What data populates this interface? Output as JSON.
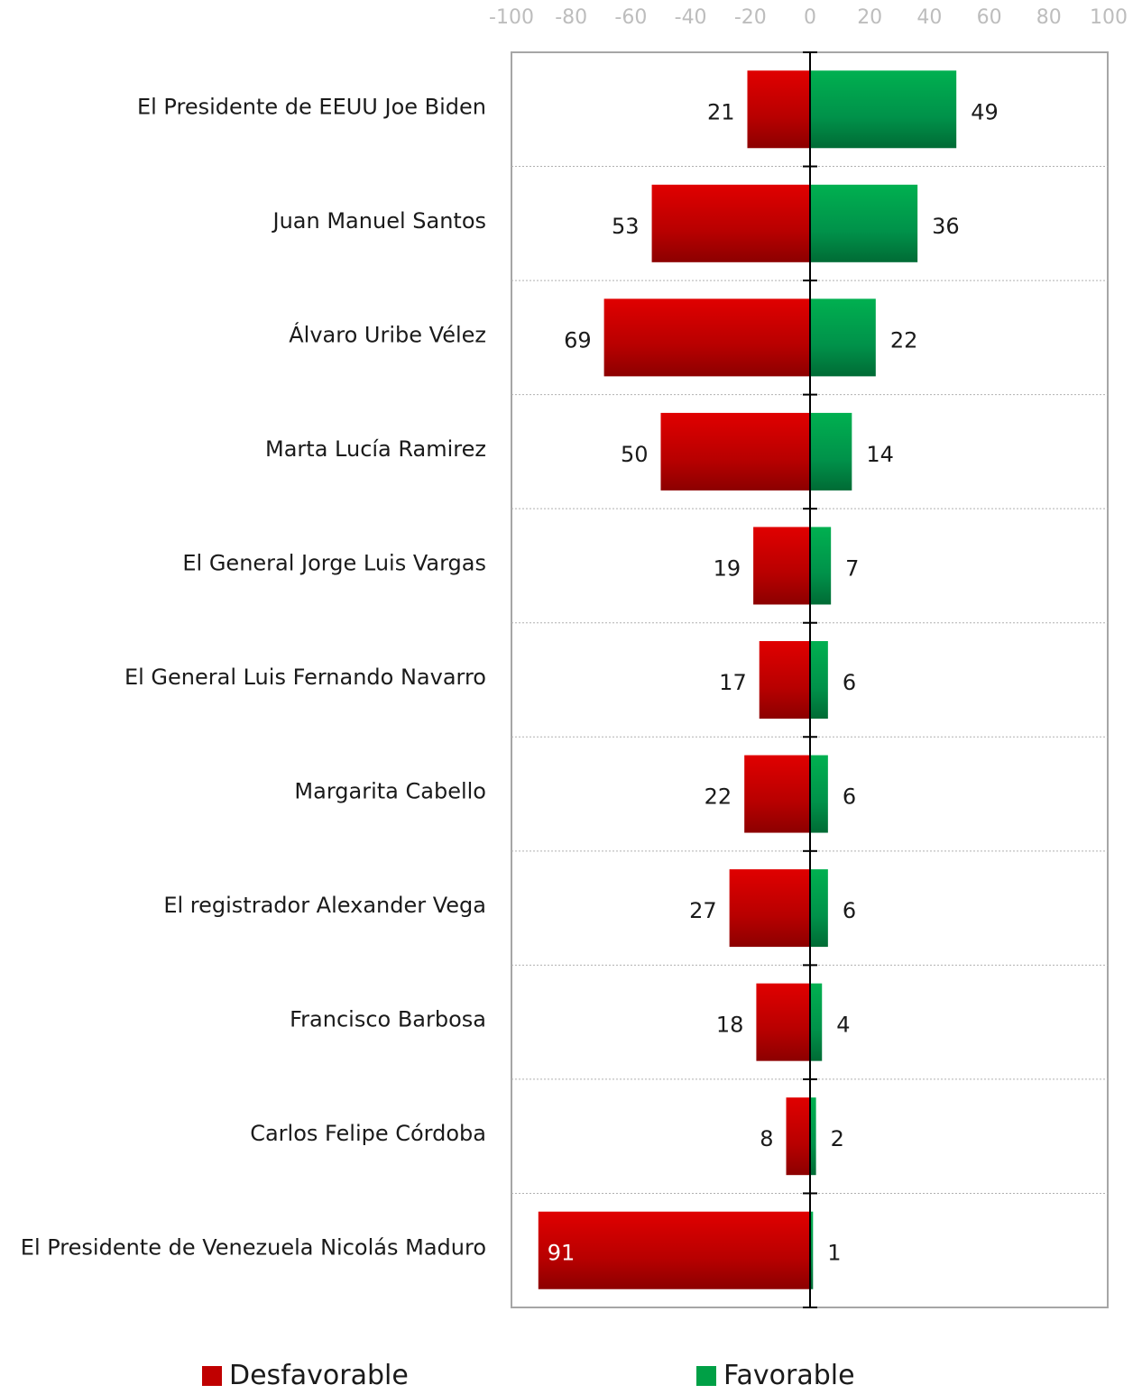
{
  "chart_data": {
    "type": "bar",
    "orientation": "horizontal-diverging",
    "title": "",
    "categories": [
      "El Presidente de EEUU Joe Biden",
      "Juan Manuel Santos",
      "Álvaro Uribe Vélez",
      "Marta Lucía Ramirez",
      "El General Jorge Luis Vargas",
      "El General Luis Fernando Navarro",
      "Margarita Cabello",
      "El registrador Alexander Vega",
      "Francisco Barbosa",
      "Carlos Felipe Córdoba",
      "El Presidente de Venezuela Nicolás Maduro"
    ],
    "series": [
      {
        "name": "Desfavorable",
        "color": "#c00000",
        "values": [
          21,
          53,
          69,
          50,
          19,
          17,
          22,
          27,
          18,
          8,
          91
        ]
      },
      {
        "name": "Favorable",
        "color": "#00a046",
        "values": [
          49,
          36,
          22,
          14,
          7,
          6,
          6,
          6,
          4,
          2,
          1
        ]
      }
    ],
    "xlim": [
      -100,
      100
    ],
    "xticks": [
      "-100",
      "-80",
      "-60",
      "-40",
      "-20",
      "0",
      "20",
      "40",
      "60",
      "80",
      "100"
    ],
    "axis_position": "top",
    "legend_position": "bottom",
    "grid": "horizontal dotted separators"
  }
}
